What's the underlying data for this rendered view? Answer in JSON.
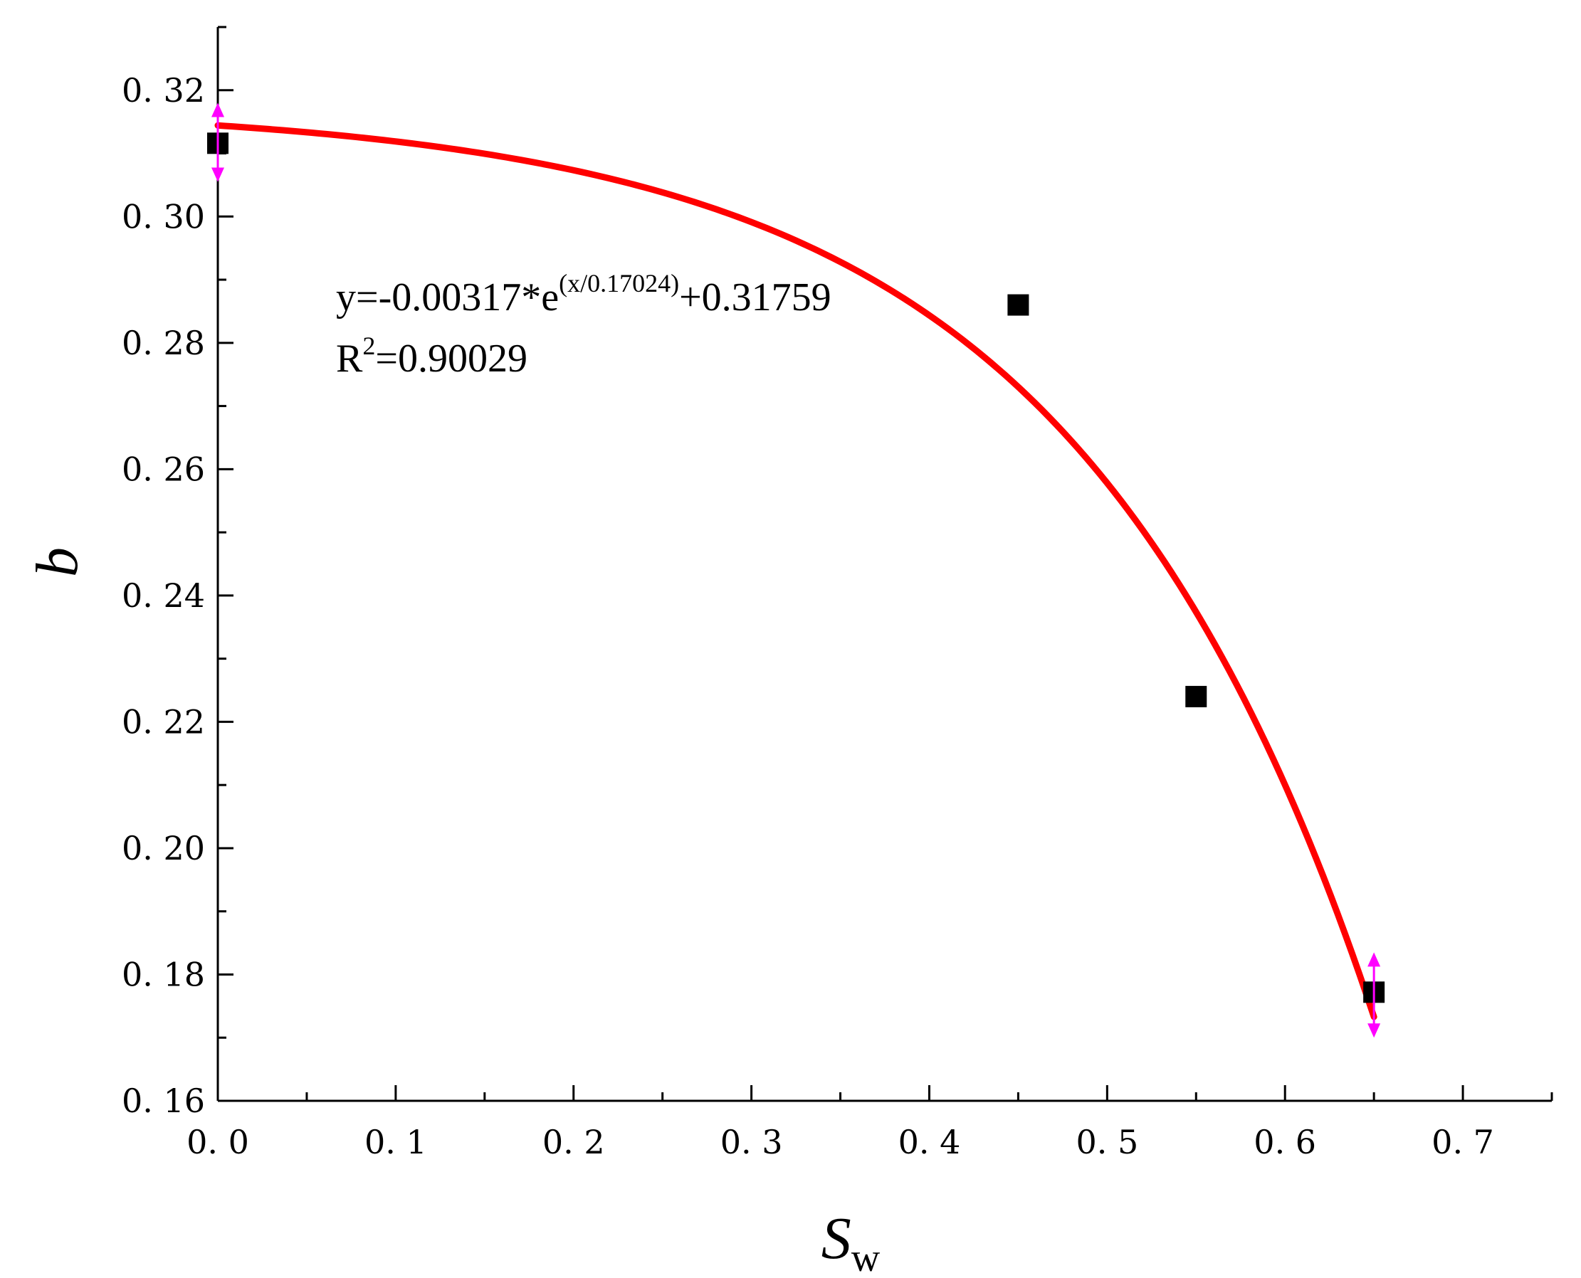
{
  "chart_data": {
    "type": "scatter",
    "xlabel": "S",
    "xlabel_sub": "w",
    "ylabel": "b",
    "xlim": [
      0.0,
      0.75
    ],
    "ylim": [
      0.16,
      0.33
    ],
    "x_ticks": [
      0.0,
      0.1,
      0.2,
      0.3,
      0.4,
      0.5,
      0.6,
      0.7
    ],
    "x_tick_labels": [
      "0. 0",
      "0. 1",
      "0. 2",
      "0. 3",
      "0. 4",
      "0. 5",
      "0. 6",
      "0. 7"
    ],
    "y_ticks": [
      0.16,
      0.18,
      0.2,
      0.22,
      0.24,
      0.26,
      0.28,
      0.3,
      0.32
    ],
    "y_tick_labels": [
      "0. 16",
      "0. 18",
      "0. 20",
      "0. 22",
      "0. 24",
      "0. 26",
      "0. 28",
      "0. 30",
      "0. 32"
    ],
    "grid": false,
    "points": [
      {
        "x": 0.0,
        "y": 0.3116
      },
      {
        "x": 0.45,
        "y": 0.286
      },
      {
        "x": 0.55,
        "y": 0.224
      },
      {
        "x": 0.65,
        "y": 0.1772
      }
    ],
    "error_bars": [
      {
        "x": 0.0,
        "low": 0.3055,
        "high": 0.318
      },
      {
        "x": 0.65,
        "low": 0.17,
        "high": 0.1835
      }
    ],
    "fit": {
      "a": -0.00317,
      "t": 0.17024,
      "c": 0.31759,
      "x_range": [
        0.0,
        0.65
      ]
    },
    "annotation": {
      "eq_main": "y=-0.00317*e",
      "eq_sup": "(x/0.17024)",
      "eq_tail": "+0.31759",
      "r2_label": "R",
      "r2_sup": "2",
      "r2_value": "=0.90029"
    },
    "colors": {
      "fit": "#ff0000",
      "points": "#000000",
      "error_bars": "#ff00ff",
      "axes": "#000000"
    }
  }
}
